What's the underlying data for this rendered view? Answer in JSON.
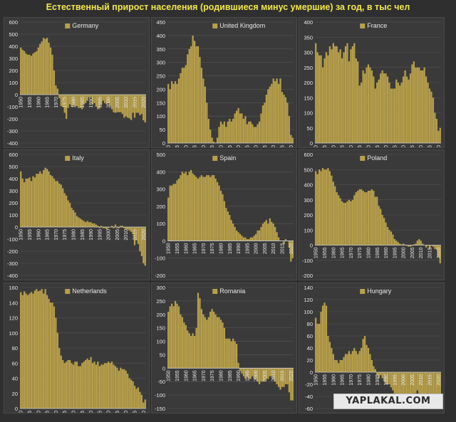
{
  "title": "Естественный прирост населения (родившиеся минус умершие) за год, в тыс чел",
  "watermark": "YAPLAKAL.COM",
  "colors": {
    "bar": "#b8a04a",
    "grid": "#555555",
    "axis": "#cfcfcf",
    "text": "#e8e8e8"
  },
  "chart_data": [
    {
      "type": "bar",
      "name": "Germany",
      "x_start": 1950,
      "x_end": 2021,
      "xticks": [
        1950,
        1955,
        1960,
        1965,
        1970,
        1975,
        1980,
        1985,
        1990,
        1995,
        2000,
        2005,
        2010,
        2015,
        2020
      ],
      "ylim": [
        -400,
        600
      ],
      "yticks": [
        -400,
        -300,
        -200,
        -100,
        0,
        100,
        200,
        300,
        400,
        500,
        600
      ],
      "values": [
        390,
        370,
        360,
        340,
        330,
        330,
        320,
        340,
        350,
        360,
        390,
        420,
        440,
        470,
        460,
        470,
        430,
        390,
        330,
        200,
        76,
        50,
        -30,
        -95,
        -100,
        -150,
        -200,
        -110,
        -80,
        -100,
        -90,
        -95,
        -95,
        -110,
        -110,
        -120,
        -80,
        -70,
        -50,
        -20,
        -16,
        -80,
        -70,
        -100,
        -120,
        -115,
        -85,
        -50,
        -70,
        -80,
        -70,
        -95,
        -120,
        -145,
        -150,
        -145,
        -145,
        -145,
        -160,
        -190,
        -180,
        -190,
        -195,
        -210,
        -150,
        -190,
        -150,
        -150,
        -170,
        -160,
        -212,
        -230
      ]
    },
    {
      "type": "bar",
      "name": "United Kingdom",
      "x_start": 1950,
      "x_end": 2021,
      "xticks": [
        1950,
        1955,
        1960,
        1965,
        1970,
        1975,
        1980,
        1985,
        1990,
        1995,
        2000,
        2005,
        2010,
        2015,
        2020
      ],
      "ylim": [
        0,
        450
      ],
      "yticks": [
        0,
        50,
        100,
        150,
        200,
        250,
        300,
        350,
        400,
        450
      ],
      "values": [
        220,
        200,
        230,
        220,
        230,
        220,
        240,
        260,
        280,
        280,
        290,
        330,
        350,
        360,
        400,
        380,
        360,
        360,
        320,
        280,
        240,
        210,
        150,
        90,
        50,
        20,
        5,
        0,
        20,
        60,
        80,
        70,
        80,
        60,
        80,
        90,
        80,
        90,
        110,
        120,
        130,
        110,
        110,
        90,
        100,
        70,
        80,
        80,
        70,
        60,
        60,
        70,
        80,
        110,
        140,
        150,
        180,
        200,
        210,
        220,
        240,
        230,
        240,
        220,
        240,
        190,
        180,
        170,
        150,
        100,
        30,
        20
      ]
    },
    {
      "type": "bar",
      "name": "France",
      "x_start": 1950,
      "x_end": 2021,
      "xticks": [
        1950,
        1955,
        1960,
        1965,
        1970,
        1975,
        1980,
        1985,
        1990,
        1995,
        2000,
        2005,
        2010,
        2015,
        2020
      ],
      "ylim": [
        0,
        400
      ],
      "yticks": [
        0,
        50,
        100,
        150,
        200,
        250,
        300,
        350,
        400
      ],
      "values": [
        330,
        300,
        290,
        290,
        250,
        280,
        300,
        290,
        320,
        310,
        330,
        320,
        320,
        300,
        310,
        280,
        300,
        320,
        330,
        270,
        310,
        320,
        330,
        280,
        270,
        190,
        200,
        240,
        230,
        250,
        260,
        250,
        240,
        220,
        180,
        200,
        210,
        230,
        240,
        230,
        230,
        220,
        200,
        180,
        180,
        180,
        210,
        200,
        190,
        200,
        220,
        240,
        220,
        210,
        230,
        260,
        270,
        250,
        250,
        250,
        240,
        240,
        250,
        220,
        200,
        180,
        170,
        150,
        100,
        80,
        40,
        50
      ]
    },
    {
      "type": "bar",
      "name": "Italy",
      "x_start": 1950,
      "x_end": 2021,
      "xticks": [
        1950,
        1955,
        1960,
        1965,
        1970,
        1975,
        1980,
        1985,
        1990,
        1995,
        2000,
        2005,
        2010,
        2015,
        2020
      ],
      "ylim": [
        -400,
        600
      ],
      "yticks": [
        -400,
        -300,
        -200,
        -100,
        0,
        100,
        200,
        300,
        400,
        500,
        600
      ],
      "values": [
        460,
        400,
        370,
        400,
        400,
        410,
        380,
        420,
        410,
        440,
        440,
        460,
        440,
        470,
        490,
        480,
        460,
        430,
        420,
        400,
        380,
        380,
        360,
        350,
        320,
        280,
        260,
        220,
        200,
        160,
        140,
        120,
        90,
        80,
        70,
        60,
        50,
        40,
        50,
        40,
        40,
        30,
        30,
        20,
        10,
        -10,
        10,
        -10,
        -10,
        -20,
        -10,
        0,
        10,
        -10,
        20,
        -10,
        -10,
        10,
        10,
        -10,
        -20,
        -20,
        -30,
        -40,
        -60,
        -150,
        -110,
        -140,
        -200,
        -240,
        -300,
        -320
      ]
    },
    {
      "type": "bar",
      "name": "Spain",
      "x_start": 1950,
      "x_end": 2021,
      "xticks": [
        1950,
        1955,
        1960,
        1965,
        1970,
        1975,
        1980,
        1985,
        1990,
        1995,
        2000,
        2005,
        2010,
        2015,
        2020
      ],
      "ylim": [
        -200,
        500
      ],
      "yticks": [
        -200,
        -100,
        0,
        100,
        200,
        300,
        400,
        500
      ],
      "values": [
        250,
        320,
        320,
        330,
        330,
        350,
        360,
        380,
        400,
        390,
        400,
        380,
        400,
        410,
        390,
        380,
        370,
        360,
        370,
        380,
        370,
        370,
        380,
        380,
        370,
        380,
        380,
        360,
        340,
        320,
        290,
        270,
        230,
        190,
        170,
        150,
        120,
        100,
        80,
        60,
        50,
        40,
        30,
        20,
        20,
        10,
        10,
        20,
        20,
        30,
        40,
        60,
        60,
        80,
        100,
        110,
        120,
        100,
        130,
        110,
        100,
        80,
        50,
        20,
        0,
        0,
        -20,
        10,
        0,
        -40,
        -120,
        -100
      ]
    },
    {
      "type": "bar",
      "name": "Poland",
      "x_start": 1950,
      "x_end": 2021,
      "xticks": [
        1950,
        1955,
        1960,
        1965,
        1970,
        1975,
        1980,
        1985,
        1990,
        1995,
        2000,
        2005,
        2010,
        2015,
        2020
      ],
      "ylim": [
        -200,
        600
      ],
      "yticks": [
        -200,
        -100,
        0,
        100,
        200,
        300,
        400,
        500,
        600
      ],
      "values": [
        490,
        470,
        500,
        490,
        510,
        500,
        500,
        510,
        490,
        460,
        420,
        390,
        350,
        330,
        310,
        290,
        280,
        280,
        290,
        300,
        290,
        300,
        330,
        350,
        360,
        370,
        370,
        360,
        350,
        350,
        360,
        360,
        370,
        360,
        320,
        320,
        260,
        240,
        200,
        180,
        150,
        120,
        100,
        90,
        70,
        40,
        30,
        20,
        10,
        5,
        10,
        5,
        -5,
        -10,
        -10,
        -5,
        5,
        10,
        30,
        40,
        30,
        10,
        0,
        -15,
        -5,
        -25,
        -5,
        -10,
        -25,
        -30,
        -80,
        -120
      ]
    },
    {
      "type": "bar",
      "name": "Netherlands",
      "x_start": 1950,
      "x_end": 2021,
      "xticks": [
        1950,
        1955,
        1960,
        1965,
        1970,
        1975,
        1980,
        1985,
        1990,
        1995,
        2000,
        2005,
        2010,
        2015,
        2020
      ],
      "ylim": [
        0,
        160
      ],
      "yticks": [
        0,
        20,
        40,
        60,
        80,
        100,
        120,
        140,
        160
      ],
      "values": [
        154,
        150,
        155,
        152,
        150,
        152,
        154,
        152,
        156,
        158,
        155,
        156,
        158,
        152,
        158,
        150,
        145,
        140,
        140,
        135,
        120,
        100,
        80,
        70,
        64,
        60,
        62,
        64,
        64,
        60,
        58,
        62,
        62,
        56,
        56,
        60,
        62,
        64,
        66,
        64,
        68,
        60,
        62,
        58,
        62,
        56,
        58,
        58,
        60,
        60,
        62,
        60,
        62,
        58,
        56,
        54,
        50,
        54,
        52,
        52,
        50,
        46,
        40,
        38,
        36,
        30,
        26,
        28,
        22,
        18,
        8,
        12
      ]
    },
    {
      "type": "bar",
      "name": "Romania",
      "x_start": 1950,
      "x_end": 2021,
      "xticks": [
        1950,
        1955,
        1960,
        1965,
        1970,
        1975,
        1980,
        1985,
        1990,
        1995,
        2000,
        2005,
        2010,
        2015,
        2020
      ],
      "ylim": [
        -150,
        300
      ],
      "yticks": [
        -150,
        -100,
        -50,
        0,
        50,
        100,
        150,
        200,
        250,
        300
      ],
      "values": [
        210,
        230,
        240,
        230,
        250,
        240,
        230,
        200,
        190,
        170,
        160,
        140,
        130,
        120,
        130,
        120,
        150,
        280,
        260,
        220,
        200,
        190,
        180,
        190,
        210,
        220,
        210,
        200,
        190,
        190,
        180,
        170,
        150,
        110,
        110,
        110,
        100,
        110,
        100,
        90,
        20,
        -10,
        -20,
        -30,
        -40,
        -30,
        -40,
        -40,
        -30,
        -40,
        -40,
        -50,
        -60,
        -50,
        -50,
        -50,
        -40,
        -40,
        -30,
        -30,
        -40,
        -50,
        -60,
        -70,
        -80,
        -70,
        -70,
        -60,
        -60,
        -90,
        -120,
        -120
      ]
    },
    {
      "type": "bar",
      "name": "Hungary",
      "x_start": 1950,
      "x_end": 2021,
      "xticks": [
        1950,
        1955,
        1960,
        1965,
        1970,
        1975,
        1980,
        1985,
        1990,
        1995,
        2000,
        2005,
        2010,
        2015,
        2020
      ],
      "ylim": [
        -60,
        140
      ],
      "yticks": [
        -60,
        -40,
        -20,
        0,
        20,
        40,
        60,
        80,
        100,
        120,
        140
      ],
      "values": [
        90,
        80,
        80,
        100,
        110,
        115,
        110,
        60,
        50,
        40,
        30,
        20,
        20,
        15,
        20,
        20,
        25,
        30,
        30,
        35,
        30,
        35,
        40,
        35,
        30,
        35,
        40,
        55,
        60,
        45,
        40,
        30,
        20,
        10,
        5,
        -5,
        -10,
        -5,
        -10,
        -15,
        -20,
        -20,
        -20,
        -25,
        -30,
        -35,
        -40,
        -45,
        -40,
        -45,
        -40,
        -40,
        -40,
        -40,
        -40,
        -40,
        -35,
        -35,
        -30,
        -35,
        -40,
        -40,
        -40,
        -40,
        -35,
        -40,
        -40,
        -40,
        -40,
        -50,
        -55,
        -60
      ]
    }
  ]
}
